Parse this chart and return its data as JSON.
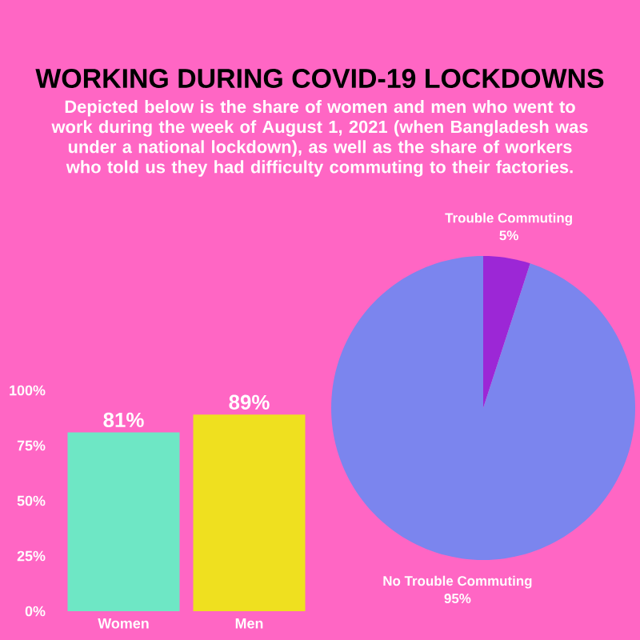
{
  "chart_data": [
    {
      "type": "bar",
      "title": "WORKING DURING COVID-19 LOCKDOWNS",
      "subtitle": "Depicted below is the share of women and men who went to work during the week of August 1, 2021 (when Bangladesh was under a national lockdown), as well as the share of workers who told us they had difficulty commuting to their factories.",
      "categories": [
        "Women",
        "Men"
      ],
      "values": [
        81,
        89
      ],
      "colors": [
        "#6ee7c5",
        "#efe01f"
      ],
      "value_labels": [
        "81%",
        "89%"
      ],
      "ylim": [
        0,
        100
      ],
      "yticks": [
        {
          "value": 0,
          "label": "0%"
        },
        {
          "value": 25,
          "label": "25%"
        },
        {
          "value": 50,
          "label": "50%"
        },
        {
          "value": 75,
          "label": "75%"
        },
        {
          "value": 100,
          "label": "100%"
        }
      ]
    },
    {
      "type": "pie",
      "categories": [
        "Trouble Commuting",
        "No Trouble Commuting"
      ],
      "values": [
        5,
        95
      ],
      "colors": [
        "#9c27d6",
        "#7b85ee"
      ],
      "value_labels": [
        "5%",
        "95%"
      ]
    }
  ]
}
